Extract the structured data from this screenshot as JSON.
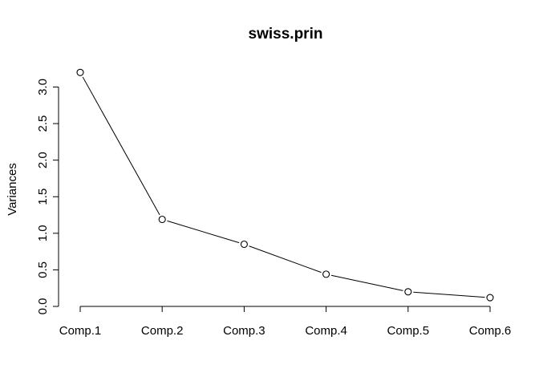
{
  "chart_data": {
    "type": "line",
    "title": "swiss.prin",
    "xlabel": "",
    "ylabel": "Variances",
    "categories": [
      "Comp.1",
      "Comp.2",
      "Comp.3",
      "Comp.4",
      "Comp.5",
      "Comp.6"
    ],
    "series": [
      {
        "values": [
          3.2,
          1.19,
          0.85,
          0.44,
          0.2,
          0.12
        ]
      }
    ],
    "ylim": [
      0,
      3.0
    ],
    "y_ticks": [
      "0.0",
      "0.5",
      "1.0",
      "1.5",
      "2.0",
      "2.5",
      "3.0"
    ],
    "markers": "open-circle",
    "grid": false,
    "legend": "none"
  }
}
